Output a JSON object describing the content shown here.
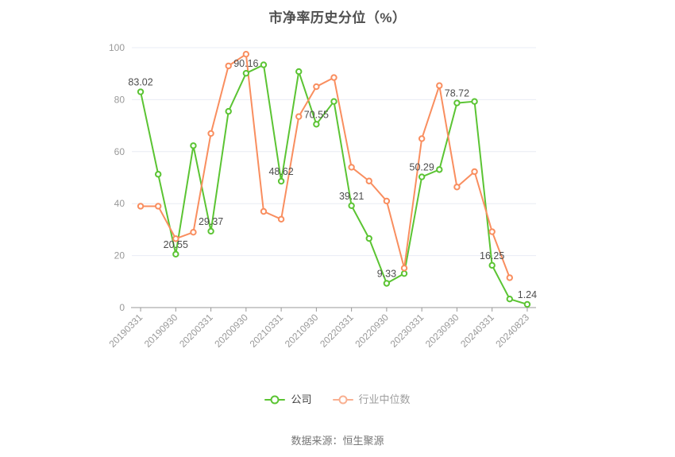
{
  "title": "市净率历史分位（%）",
  "source_note": "数据来源：恒生聚源",
  "legend": [
    {
      "name": "公司",
      "color": "#5bc433",
      "text_color": "#3f3f3f"
    },
    {
      "name": "行业中位数",
      "color": "#f9b091",
      "text_color": "#9e9e9e"
    }
  ],
  "colors": {
    "company_line": "#5bc433",
    "industry_line": "#f98e5f",
    "grid_line": "#e8ecf4",
    "axis_line": "#999999",
    "tick_label": "#999999",
    "data_label": "#4d4d4d"
  },
  "chart_data": {
    "type": "line",
    "title": "市净率历史分位（%）",
    "categories": [
      "20190331",
      "",
      "20190930",
      "",
      "20200331",
      "",
      "20200930",
      "",
      "20210331",
      "",
      "20210930",
      "",
      "20220331",
      "",
      "20220930",
      "",
      "20230331",
      "",
      "20230930",
      "",
      "20240331",
      "",
      "20240823"
    ],
    "series": [
      {
        "name": "公司",
        "color": "#5bc433",
        "values": [
          83.02,
          51.3,
          20.55,
          62.3,
          29.37,
          75.5,
          90.16,
          93.4,
          48.62,
          90.8,
          70.55,
          79.3,
          39.21,
          26.6,
          9.33,
          13.1,
          50.29,
          53.1,
          78.72,
          79.3,
          16.25,
          3.3,
          1.24
        ],
        "label_indices": [
          0,
          2,
          4,
          6,
          8,
          10,
          12,
          14,
          16,
          18,
          20,
          22
        ]
      },
      {
        "name": "行业中位数",
        "color": "#f98e5f",
        "values": [
          39,
          39,
          26.5,
          29,
          67,
          93,
          97.5,
          37,
          34,
          73.5,
          85,
          88.5,
          54,
          48.7,
          41,
          15.2,
          65,
          85.4,
          46.4,
          52.3,
          29.2,
          11.5,
          null
        ],
        "label_indices": []
      }
    ],
    "xlabel": "",
    "ylabel": "",
    "ylim": [
      0,
      100
    ],
    "yticks": [
      0,
      20,
      40,
      60,
      80,
      100
    ],
    "grid": true,
    "legend_position": "bottom"
  }
}
